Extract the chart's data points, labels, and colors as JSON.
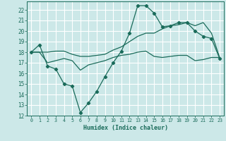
{
  "bg_color": "#cce8e8",
  "grid_color": "#ffffff",
  "line_color": "#1a6b5a",
  "xlabel": "Humidex (Indice chaleur)",
  "xlim": [
    -0.5,
    23.5
  ],
  "ylim": [
    12,
    22.8
  ],
  "yticks": [
    12,
    13,
    14,
    15,
    16,
    17,
    18,
    19,
    20,
    21,
    22
  ],
  "xticks": [
    0,
    1,
    2,
    3,
    4,
    5,
    6,
    7,
    8,
    9,
    10,
    11,
    12,
    13,
    14,
    15,
    16,
    17,
    18,
    19,
    20,
    21,
    22,
    23
  ],
  "series1": {
    "x": [
      0,
      1,
      2,
      3,
      4,
      5,
      6,
      7,
      8,
      9,
      10,
      11,
      12,
      13,
      14,
      15,
      16,
      17,
      18,
      19,
      20,
      21,
      22,
      23
    ],
    "y": [
      18.0,
      18.7,
      16.7,
      16.4,
      15.0,
      14.8,
      12.3,
      13.2,
      14.3,
      15.7,
      17.0,
      18.1,
      19.8,
      22.4,
      22.4,
      21.7,
      20.4,
      20.5,
      20.8,
      20.8,
      20.0,
      19.5,
      19.3,
      17.4
    ]
  },
  "series2": {
    "x": [
      0,
      1,
      2,
      3,
      4,
      5,
      6,
      7,
      8,
      9,
      10,
      11,
      12,
      13,
      14,
      15,
      16,
      17,
      18,
      19,
      20,
      21,
      22,
      23
    ],
    "y": [
      18.0,
      18.0,
      17.0,
      17.2,
      17.4,
      17.2,
      16.3,
      16.8,
      17.0,
      17.2,
      17.5,
      17.7,
      17.8,
      18.0,
      18.1,
      17.6,
      17.5,
      17.6,
      17.7,
      17.7,
      17.2,
      17.3,
      17.5,
      17.5
    ]
  },
  "series3": {
    "x": [
      0,
      1,
      2,
      3,
      4,
      5,
      6,
      7,
      8,
      9,
      10,
      11,
      12,
      13,
      14,
      15,
      16,
      17,
      18,
      19,
      20,
      21,
      22,
      23
    ],
    "y": [
      18.0,
      18.0,
      18.0,
      18.1,
      18.1,
      17.8,
      17.6,
      17.6,
      17.7,
      17.8,
      18.2,
      18.5,
      19.0,
      19.5,
      19.8,
      19.8,
      20.2,
      20.5,
      20.6,
      20.8,
      20.5,
      20.8,
      19.8,
      17.5
    ]
  }
}
